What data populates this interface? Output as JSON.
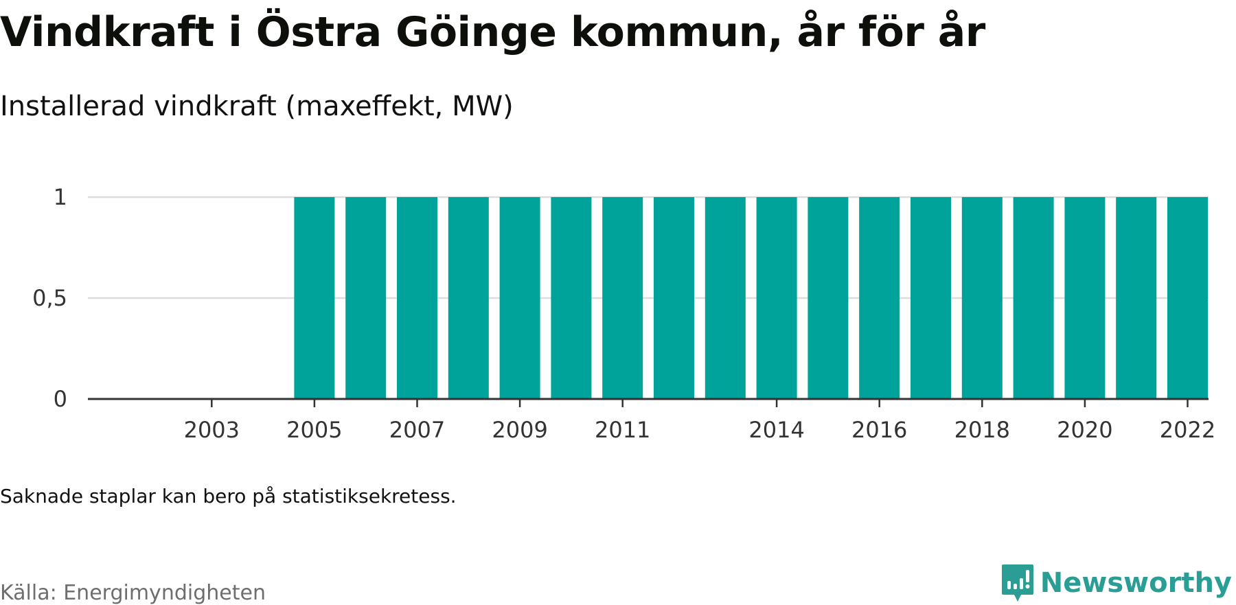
{
  "title": "Vindkraft i Östra Göinge kommun, år för år",
  "subtitle": "Installerad vindkraft (maxeffekt, MW)",
  "note": "Saknade staplar kan bero på statistiksekretess.",
  "source": "Källa: Energimyndigheten",
  "brand": {
    "name": "Newsworthy",
    "icon": "newsworthy-logo-icon",
    "color": "#2a9d94"
  },
  "colors": {
    "bar": "#00a39a",
    "grid": "#dddddd",
    "axis": "#333333"
  },
  "chart_data": {
    "type": "bar",
    "title": "Vindkraft i Östra Göinge kommun, år för år",
    "subtitle": "Installerad vindkraft (maxeffekt, MW)",
    "xlabel": "",
    "ylabel": "",
    "categories": [
      2002,
      2003,
      2004,
      2005,
      2006,
      2007,
      2008,
      2009,
      2010,
      2011,
      2012,
      2013,
      2014,
      2015,
      2016,
      2017,
      2018,
      2019,
      2020,
      2021,
      2022
    ],
    "values": [
      null,
      null,
      null,
      1,
      1,
      1,
      1,
      1,
      1,
      1,
      1,
      1,
      1,
      1,
      1,
      1,
      1,
      1,
      1,
      1,
      1
    ],
    "x_tick_labels": [
      "2003",
      "2005",
      "2007",
      "2009",
      "2011",
      "2014",
      "2016",
      "2018",
      "2020",
      "2022"
    ],
    "y_ticks": [
      0,
      0.5,
      1
    ],
    "y_tick_labels": [
      "0",
      "0,5",
      "1"
    ],
    "ylim": [
      0,
      1
    ],
    "grid": true,
    "legend": "none"
  }
}
